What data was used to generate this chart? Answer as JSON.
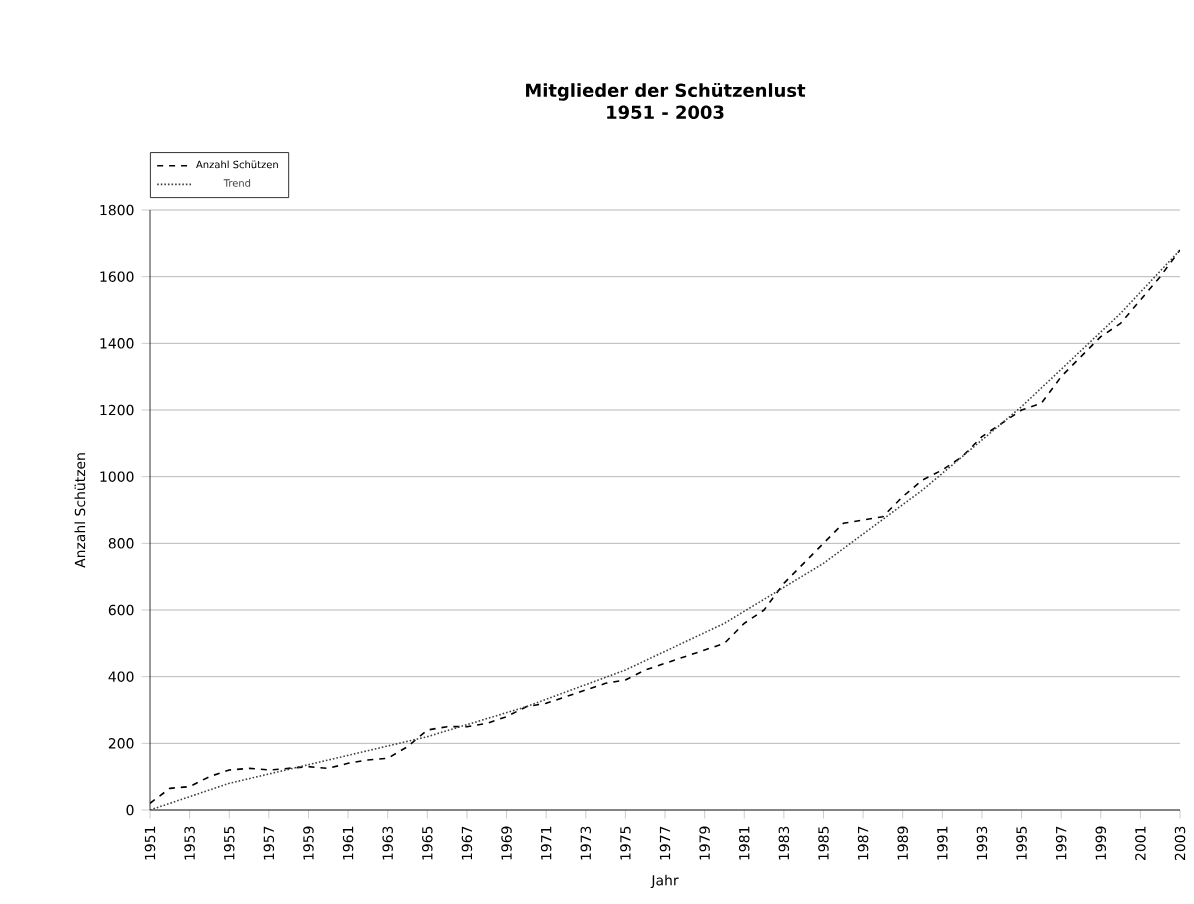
{
  "chart_data": {
    "type": "line",
    "title": "Mitglieder der Schützenlust",
    "subtitle": "1951 - 2003",
    "xlabel": "Jahr",
    "ylabel": "Anzahl Schützen",
    "xlim": [
      1951,
      2003
    ],
    "xticks": [
      1951,
      1953,
      1955,
      1957,
      1959,
      1961,
      1963,
      1965,
      1967,
      1969,
      1971,
      1973,
      1975,
      1977,
      1979,
      1981,
      1983,
      1985,
      1987,
      1989,
      1991,
      1993,
      1995,
      1997,
      1999,
      2001,
      2003
    ],
    "ylim": [
      0,
      1800
    ],
    "yticks": [
      0,
      200,
      400,
      600,
      800,
      1000,
      1200,
      1400,
      1600,
      1800
    ],
    "grid": "y",
    "legend": "top left",
    "series": [
      {
        "name": "Anzahl Schützen",
        "color": "#000000",
        "line_style": "dashed",
        "x": [
          1951,
          1952,
          1953,
          1954,
          1955,
          1956,
          1957,
          1958,
          1959,
          1960,
          1961,
          1962,
          1963,
          1964,
          1965,
          1966,
          1967,
          1968,
          1969,
          1970,
          1971,
          1972,
          1973,
          1974,
          1975,
          1976,
          1977,
          1978,
          1979,
          1980,
          1981,
          1982,
          1983,
          1984,
          1985,
          1986,
          1987,
          1988,
          1989,
          1990,
          1991,
          1992,
          1993,
          1994,
          1995,
          1996,
          1997,
          1998,
          1999,
          2000,
          2001,
          2002,
          2003
        ],
        "values": [
          20,
          65,
          70,
          100,
          120,
          125,
          120,
          125,
          130,
          125,
          140,
          150,
          155,
          190,
          240,
          250,
          250,
          260,
          280,
          310,
          320,
          340,
          360,
          380,
          390,
          420,
          440,
          460,
          480,
          500,
          560,
          600,
          680,
          740,
          800,
          860,
          870,
          880,
          940,
          990,
          1020,
          1060,
          1120,
          1160,
          1200,
          1220,
          1300,
          1360,
          1420,
          1460,
          1530,
          1600,
          1680
        ]
      },
      {
        "name": "Trend",
        "color": "#404040",
        "line_style": "dotted",
        "x": [
          1951,
          1955,
          1960,
          1965,
          1970,
          1975,
          1980,
          1985,
          1990,
          1995,
          2000,
          2003
        ],
        "values": [
          0,
          80,
          150,
          220,
          310,
          420,
          560,
          740,
          960,
          1210,
          1490,
          1680
        ]
      }
    ]
  }
}
